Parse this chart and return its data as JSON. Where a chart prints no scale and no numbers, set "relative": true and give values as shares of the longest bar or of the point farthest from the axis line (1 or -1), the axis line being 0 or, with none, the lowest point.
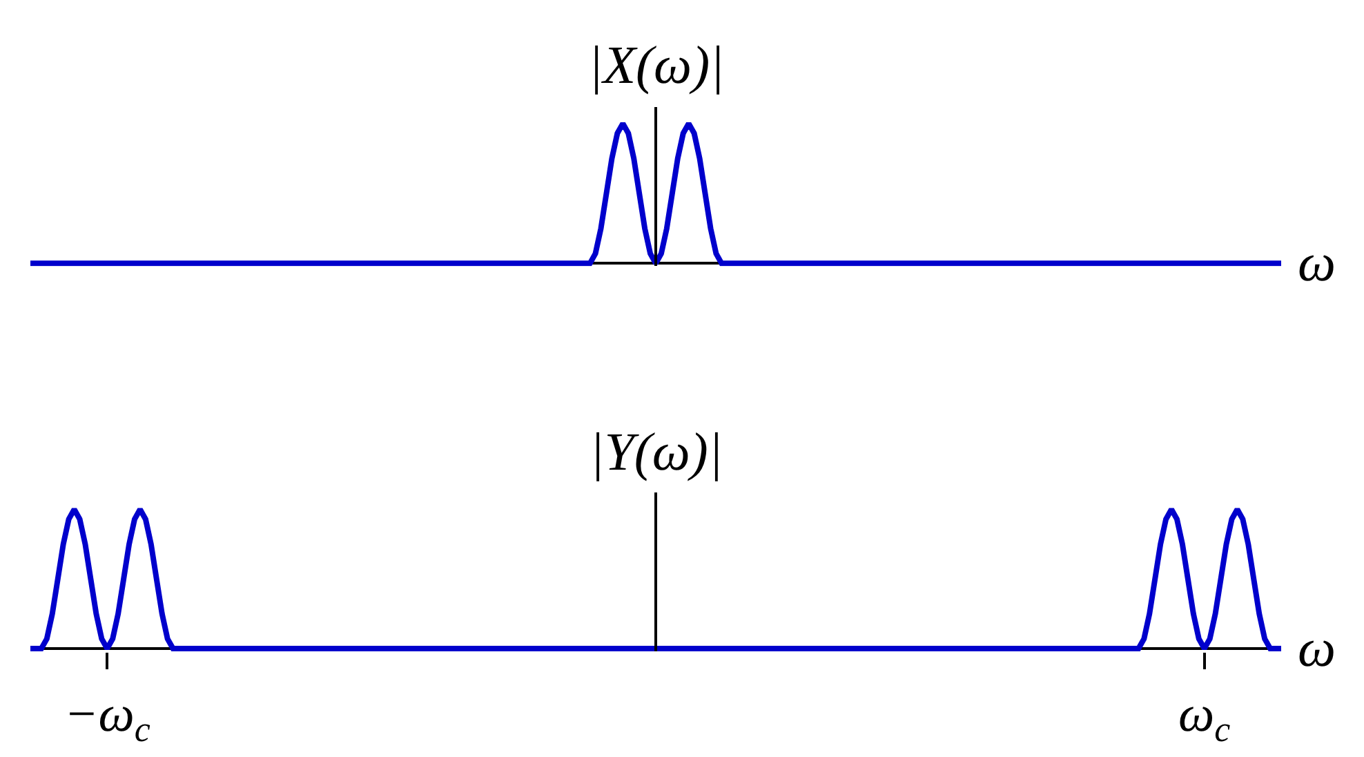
{
  "chart_data": [
    {
      "type": "line",
      "ylabel": "|X(ω)|",
      "xlabel": "ω",
      "relative": true,
      "tick_labels": false,
      "categories": [
        null,
        null,
        null,
        null,
        null,
        null,
        null,
        null,
        null,
        null,
        null,
        null,
        null,
        null,
        null,
        null,
        null,
        null,
        null,
        null,
        null,
        null,
        null,
        null,
        null,
        null,
        null,
        null,
        null,
        null,
        null,
        null,
        null,
        null,
        null,
        null,
        null,
        null,
        null,
        null,
        null,
        null,
        null,
        null,
        null,
        null,
        null,
        null,
        null,
        null,
        null,
        null,
        null,
        null,
        null,
        null,
        null,
        null,
        null,
        null,
        null,
        null,
        null,
        null,
        null,
        null,
        null,
        null,
        null,
        null,
        null,
        null,
        null,
        null,
        null,
        null,
        null,
        null,
        null,
        null,
        null,
        null,
        null,
        null,
        null,
        null,
        null,
        null,
        null,
        null,
        null,
        null,
        null,
        null,
        null,
        null,
        null,
        null,
        null,
        null,
        null,
        null,
        null,
        null,
        null,
        null,
        null,
        null,
        null,
        null,
        null,
        null,
        null,
        null,
        null,
        null,
        null,
        null,
        null,
        null,
        null,
        null,
        null,
        null,
        null,
        null,
        null,
        null,
        null,
        null,
        null,
        null,
        null,
        null,
        null,
        null,
        null,
        null,
        null,
        null,
        null,
        null,
        null,
        null,
        null,
        null,
        null,
        null,
        null,
        null,
        null,
        null,
        null,
        null,
        null,
        null,
        null,
        null,
        null,
        null,
        null,
        null,
        null,
        null,
        null,
        null,
        null,
        null,
        null,
        null,
        null,
        null,
        null,
        null,
        null,
        null,
        null,
        null,
        null,
        null,
        null,
        null,
        null,
        null,
        null,
        null,
        null,
        null,
        null,
        null,
        null,
        null,
        null,
        null,
        null,
        null,
        null,
        null,
        null,
        null,
        null,
        null,
        null,
        null,
        null,
        null,
        null,
        null,
        null,
        null,
        null,
        null,
        null,
        null,
        null,
        null,
        null,
        null,
        null,
        null,
        null,
        null,
        null,
        null,
        null,
        null,
        null,
        null,
        null
      ],
      "series": [
        {
          "color": "#0000cc",
          "values": [
            0,
            0,
            0,
            0,
            0,
            0,
            0,
            0,
            0,
            0,
            0,
            0,
            0,
            0,
            0,
            0,
            0,
            0,
            0,
            0,
            0,
            0,
            0,
            0,
            0,
            0,
            0,
            0,
            0,
            0,
            0,
            0,
            0,
            0,
            0,
            0,
            0,
            0,
            0,
            0,
            0,
            0,
            0,
            0,
            0,
            0,
            0,
            0,
            0,
            0,
            0,
            0,
            0,
            0,
            0,
            0,
            0,
            0,
            0,
            0,
            0,
            0,
            0,
            0,
            0,
            0,
            0,
            0,
            0,
            0,
            0,
            0,
            0,
            0,
            0,
            0,
            0,
            0,
            0,
            0,
            0,
            0,
            0,
            0,
            0,
            0,
            0,
            0,
            0,
            0,
            0,
            0,
            0,
            0,
            0,
            0,
            0,
            0,
            0,
            0,
            0,
            0,
            0,
            0.07,
            0.25,
            0.5,
            0.75,
            0.93,
            1,
            0.93,
            0.75,
            0.5,
            0.25,
            0.07,
            0,
            0.07,
            0.25,
            0.5,
            0.75,
            0.93,
            1,
            0.93,
            0.75,
            0.5,
            0.25,
            0.07,
            0,
            0,
            0,
            0,
            0,
            0,
            0,
            0,
            0,
            0,
            0,
            0,
            0,
            0,
            0,
            0,
            0,
            0,
            0,
            0,
            0,
            0,
            0,
            0,
            0,
            0,
            0,
            0,
            0,
            0,
            0,
            0,
            0,
            0,
            0,
            0,
            0,
            0,
            0,
            0,
            0,
            0,
            0,
            0,
            0,
            0,
            0,
            0,
            0,
            0,
            0,
            0,
            0,
            0,
            0,
            0,
            0,
            0,
            0,
            0,
            0,
            0,
            0,
            0,
            0,
            0,
            0,
            0,
            0,
            0,
            0,
            0,
            0,
            0,
            0,
            0,
            0,
            0,
            0,
            0,
            0,
            0,
            0,
            0,
            0,
            0,
            0,
            0,
            0,
            0,
            0,
            0,
            0,
            0,
            0,
            0,
            0,
            0,
            0,
            0,
            0,
            0,
            0
          ]
        }
      ]
    },
    {
      "type": "line",
      "ylabel": "|Y(ω)|",
      "xlabel": "ω",
      "relative": true,
      "tick_labels": "x",
      "categories": [
        null,
        null,
        null,
        null,
        null,
        null,
        null,
        null,
        null,
        null,
        null,
        null,
        null,
        null,
        "−ω$_{c}$",
        null,
        null,
        null,
        null,
        null,
        null,
        null,
        null,
        null,
        null,
        null,
        null,
        null,
        null,
        null,
        null,
        null,
        null,
        null,
        null,
        null,
        null,
        null,
        null,
        null,
        null,
        null,
        null,
        null,
        null,
        null,
        null,
        null,
        null,
        null,
        null,
        null,
        null,
        null,
        null,
        null,
        null,
        null,
        null,
        null,
        null,
        null,
        null,
        null,
        null,
        null,
        null,
        null,
        null,
        null,
        null,
        null,
        null,
        null,
        null,
        null,
        null,
        null,
        null,
        null,
        null,
        null,
        null,
        null,
        null,
        null,
        null,
        null,
        null,
        null,
        null,
        null,
        null,
        null,
        null,
        null,
        null,
        null,
        null,
        null,
        null,
        null,
        null,
        null,
        null,
        null,
        null,
        null,
        null,
        null,
        null,
        null,
        null,
        null,
        null,
        null,
        null,
        null,
        null,
        null,
        null,
        null,
        null,
        null,
        null,
        null,
        null,
        null,
        null,
        null,
        null,
        null,
        null,
        null,
        null,
        null,
        null,
        null,
        null,
        null,
        null,
        null,
        null,
        null,
        null,
        null,
        null,
        null,
        null,
        null,
        null,
        null,
        null,
        null,
        null,
        null,
        null,
        null,
        null,
        null,
        null,
        null,
        null,
        null,
        null,
        null,
        null,
        null,
        null,
        null,
        null,
        null,
        null,
        null,
        null,
        null,
        null,
        null,
        null,
        null,
        null,
        null,
        null,
        null,
        null,
        null,
        null,
        null,
        null,
        null,
        null,
        null,
        null,
        null,
        null,
        null,
        null,
        null,
        null,
        null,
        null,
        null,
        null,
        null,
        null,
        null,
        null,
        null,
        null,
        null,
        null,
        null,
        null,
        null,
        "ω$_{c}$",
        null,
        null,
        null,
        null,
        null,
        null,
        null,
        null,
        null,
        null,
        null,
        null,
        null,
        null
      ],
      "series": [
        {
          "color": "#0000cc",
          "values": [
            0,
            0,
            0,
            0.07,
            0.25,
            0.5,
            0.75,
            0.93,
            1,
            0.93,
            0.75,
            0.5,
            0.25,
            0.07,
            0,
            0.07,
            0.25,
            0.5,
            0.75,
            0.93,
            1,
            0.93,
            0.75,
            0.5,
            0.25,
            0.07,
            0,
            0,
            0,
            0,
            0,
            0,
            0,
            0,
            0,
            0,
            0,
            0,
            0,
            0,
            0,
            0,
            0,
            0,
            0,
            0,
            0,
            0,
            0,
            0,
            0,
            0,
            0,
            0,
            0,
            0,
            0,
            0,
            0,
            0,
            0,
            0,
            0,
            0,
            0,
            0,
            0,
            0,
            0,
            0,
            0,
            0,
            0,
            0,
            0,
            0,
            0,
            0,
            0,
            0,
            0,
            0,
            0,
            0,
            0,
            0,
            0,
            0,
            0,
            0,
            0,
            0,
            0,
            0,
            0,
            0,
            0,
            0,
            0,
            0,
            0,
            0,
            0,
            0,
            0,
            0,
            0,
            0,
            0,
            0,
            0,
            0,
            0,
            0,
            0,
            0,
            0,
            0,
            0,
            0,
            0,
            0,
            0,
            0,
            0,
            0,
            0,
            0,
            0,
            0,
            0,
            0,
            0,
            0,
            0,
            0,
            0,
            0,
            0,
            0,
            0,
            0,
            0,
            0,
            0,
            0,
            0,
            0,
            0,
            0,
            0,
            0,
            0,
            0,
            0,
            0,
            0,
            0,
            0,
            0,
            0,
            0,
            0,
            0,
            0,
            0,
            0,
            0,
            0,
            0,
            0,
            0,
            0,
            0,
            0,
            0,
            0,
            0,
            0,
            0,
            0,
            0,
            0,
            0,
            0,
            0,
            0,
            0,
            0,
            0,
            0,
            0,
            0,
            0,
            0,
            0,
            0,
            0,
            0,
            0,
            0,
            0,
            0,
            0.07,
            0.25,
            0.5,
            0.75,
            0.93,
            1,
            0.93,
            0.75,
            0.5,
            0.25,
            0.07,
            0,
            0.07,
            0.25,
            0.5,
            0.75,
            0.93,
            1,
            0.93,
            0.75,
            0.5,
            0.25,
            0.07,
            0,
            0,
            0
          ]
        }
      ]
    }
  ]
}
